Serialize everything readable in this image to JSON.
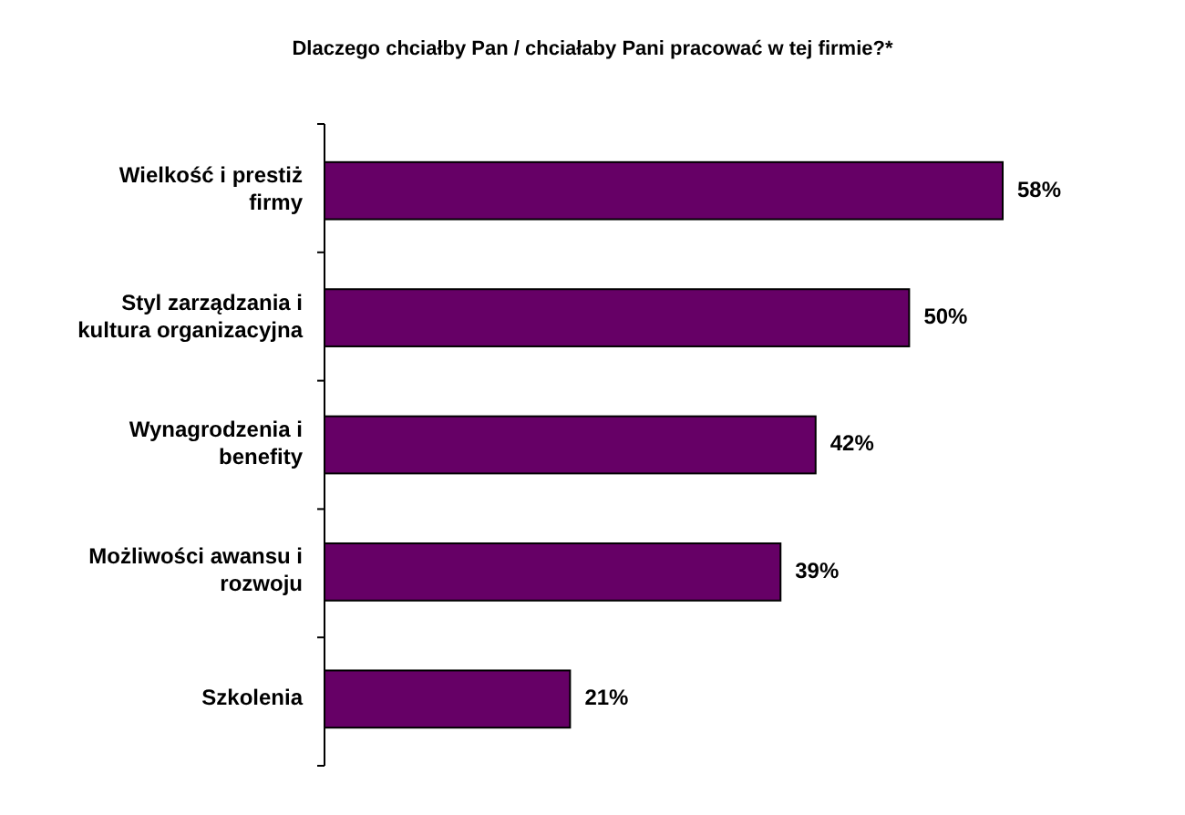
{
  "chart_data": {
    "type": "bar",
    "orientation": "horizontal",
    "title": "Dlaczego chciałby Pan / chciałaby Pani pracować w tej firmie?*",
    "categories": [
      "Wielkość i prestiż firmy",
      "Styl zarządzania i kultura organizacyjna",
      "Wynagrodzenia i benefity",
      "Możliwości awansu i rozwoju",
      "Szkolenia"
    ],
    "values": [
      58,
      50,
      42,
      39,
      21
    ],
    "value_labels": [
      "58%",
      "50%",
      "42%",
      "39%",
      "21%"
    ],
    "color": "#660066"
  }
}
